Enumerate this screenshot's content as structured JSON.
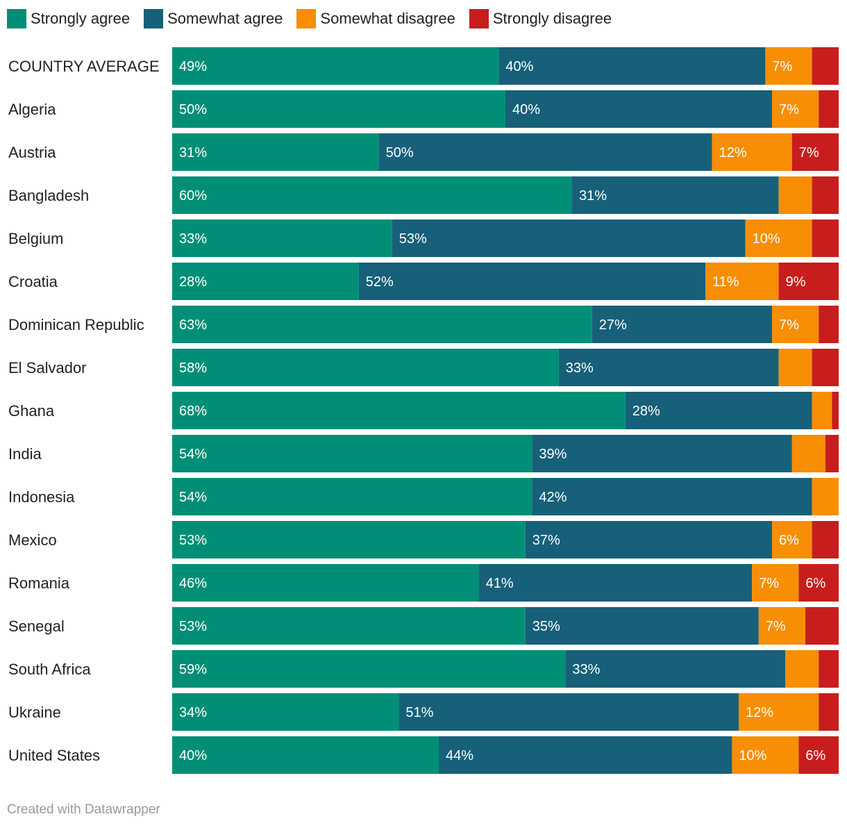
{
  "chart_data": {
    "type": "bar",
    "orientation": "horizontal-stacked-100",
    "legend_position": "top-left",
    "series": [
      {
        "name": "Strongly agree",
        "color": "#008f76"
      },
      {
        "name": "Somewhat agree",
        "color": "#17607a"
      },
      {
        "name": "Somewhat disagree",
        "color": "#f78e04"
      },
      {
        "name": "Strongly disagree",
        "color": "#c71e1d"
      }
    ],
    "rows": [
      {
        "label": "COUNTRY AVERAGE",
        "values": [
          49,
          40,
          7,
          4
        ],
        "labels": [
          "49%",
          "40%",
          "7%",
          ""
        ]
      },
      {
        "label": "Algeria",
        "values": [
          50,
          40,
          7,
          3
        ],
        "labels": [
          "50%",
          "40%",
          "7%",
          ""
        ]
      },
      {
        "label": "Austria",
        "values": [
          31,
          50,
          12,
          7
        ],
        "labels": [
          "31%",
          "50%",
          "12%",
          "7%"
        ]
      },
      {
        "label": "Bangladesh",
        "values": [
          60,
          31,
          5,
          4
        ],
        "labels": [
          "60%",
          "31%",
          "",
          ""
        ]
      },
      {
        "label": "Belgium",
        "values": [
          33,
          53,
          10,
          4
        ],
        "labels": [
          "33%",
          "53%",
          "10%",
          ""
        ]
      },
      {
        "label": "Croatia",
        "values": [
          28,
          52,
          11,
          9
        ],
        "labels": [
          "28%",
          "52%",
          "11%",
          "9%"
        ]
      },
      {
        "label": "Dominican Republic",
        "values": [
          63,
          27,
          7,
          3
        ],
        "labels": [
          "63%",
          "27%",
          "7%",
          ""
        ]
      },
      {
        "label": "El Salvador",
        "values": [
          58,
          33,
          5,
          4
        ],
        "labels": [
          "58%",
          "33%",
          "",
          ""
        ]
      },
      {
        "label": "Ghana",
        "values": [
          68,
          28,
          3,
          1
        ],
        "labels": [
          "68%",
          "28%",
          "",
          ""
        ]
      },
      {
        "label": "India",
        "values": [
          54,
          39,
          5,
          2
        ],
        "labels": [
          "54%",
          "39%",
          "",
          ""
        ]
      },
      {
        "label": "Indonesia",
        "values": [
          54,
          42,
          4,
          0
        ],
        "labels": [
          "54%",
          "42%",
          "",
          ""
        ]
      },
      {
        "label": "Mexico",
        "values": [
          53,
          37,
          6,
          4
        ],
        "labels": [
          "53%",
          "37%",
          "6%",
          ""
        ]
      },
      {
        "label": "Romania",
        "values": [
          46,
          41,
          7,
          6
        ],
        "labels": [
          "46%",
          "41%",
          "7%",
          "6%"
        ]
      },
      {
        "label": "Senegal",
        "values": [
          53,
          35,
          7,
          5
        ],
        "labels": [
          "53%",
          "35%",
          "7%",
          ""
        ]
      },
      {
        "label": "South Africa",
        "values": [
          59,
          33,
          5,
          3
        ],
        "labels": [
          "59%",
          "33%",
          "",
          ""
        ]
      },
      {
        "label": "Ukraine",
        "values": [
          34,
          51,
          12,
          3
        ],
        "labels": [
          "34%",
          "51%",
          "12%",
          ""
        ]
      },
      {
        "label": "United States",
        "values": [
          40,
          44,
          10,
          6
        ],
        "labels": [
          "40%",
          "44%",
          "10%",
          "6%"
        ]
      }
    ],
    "xlim": [
      0,
      100
    ]
  },
  "footer": {
    "credit": "Created with Datawrapper"
  }
}
